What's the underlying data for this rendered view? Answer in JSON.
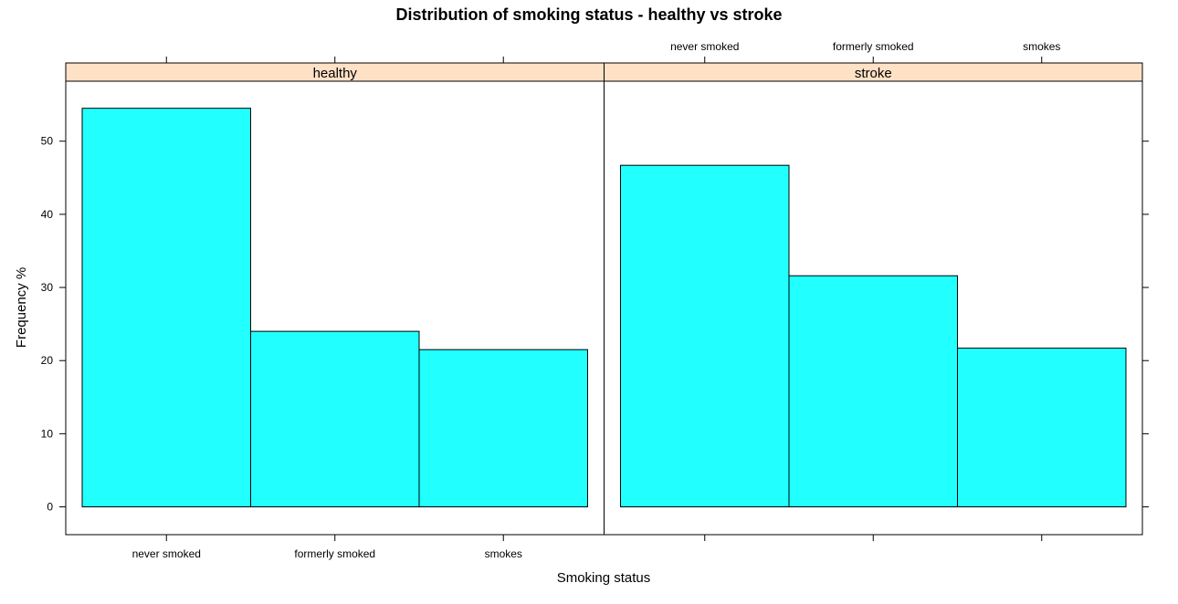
{
  "chart_data": {
    "type": "bar",
    "title": "Distribution of smoking status - healthy vs stroke",
    "xlabel": "Smoking status",
    "ylabel": "Frequency %",
    "categories": [
      "never smoked",
      "formerly smoked",
      "smokes"
    ],
    "panels": [
      {
        "name": "healthy",
        "values": [
          54.5,
          24.0,
          21.5
        ]
      },
      {
        "name": "stroke",
        "values": [
          46.7,
          31.6,
          21.7
        ]
      }
    ],
    "ylim": [
      -3.8,
      58.2
    ],
    "yticks": [
      0,
      10,
      20,
      30,
      40,
      50
    ],
    "ytick_labels": [
      "0",
      "10",
      "20",
      "30",
      "40",
      "50"
    ],
    "bar_color": "#21ffff",
    "strip_color": "#ffe1c6",
    "grid": false,
    "legend": "none"
  }
}
